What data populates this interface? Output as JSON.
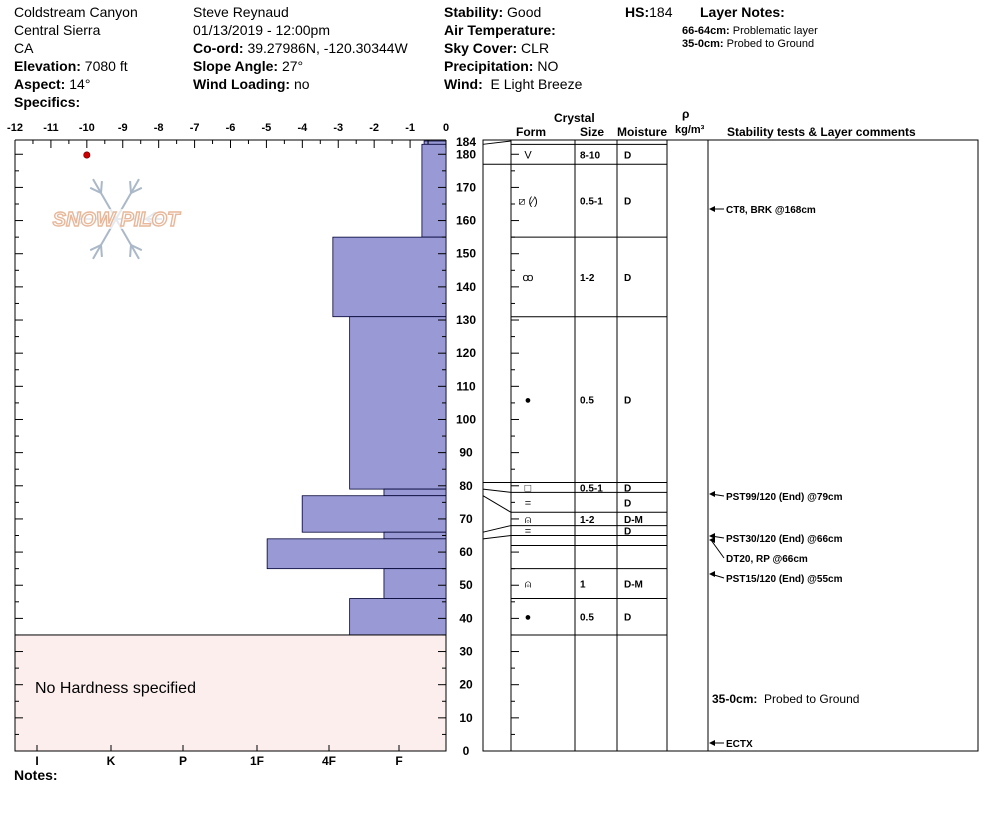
{
  "header": {
    "location": "Coldstream Canyon",
    "range": "Central Sierra",
    "state": "CA",
    "elevation_label": "Elevation:",
    "elevation": "7080 ft",
    "aspect_label": "Aspect:",
    "aspect": "14°",
    "specifics_label": "Specifics:",
    "observer": "Steve Reynaud",
    "datetime": "01/13/2019 - 12:00pm",
    "coord_label": "Co-ord:",
    "coord": "39.27986N, -120.30344W",
    "slope_label": "Slope Angle:",
    "slope": "27°",
    "wind_loading_label": "Wind Loading:",
    "wind_loading": "no",
    "stability_label": "Stability:",
    "stability": "Good",
    "air_temp_label": "Air Temperature:",
    "sky_label": "Sky Cover:",
    "sky": "CLR",
    "precip_label": "Precipitation:",
    "precip": "NO",
    "wind_label": "Wind:",
    "wind": "E Light Breeze",
    "hs_label": "HS:",
    "hs": "184",
    "layer_notes_label": "Layer Notes:",
    "layer_notes": [
      {
        "range": "66-64cm:",
        "text": "Problematic layer"
      },
      {
        "range": "35-0cm:",
        "text": "Probed to Ground"
      }
    ]
  },
  "logo_text": "SNOW PILOT",
  "no_hardness_text": "No Hardness specified",
  "notes_label": "Notes:",
  "columns": {
    "crystal": "Crystal",
    "form": "Form",
    "size": "Size",
    "moisture": "Moisture",
    "rho": "ρ",
    "density_unit": "kg/m³",
    "tests": "Stability tests & Layer comments"
  },
  "layers": [
    {
      "form": "V",
      "icon": "depth-hoar-icon",
      "size": "8-10",
      "moisture": "D"
    },
    {
      "form": "⧄ (⁄)",
      "icon": "faceted-crystal-icon",
      "size": "0.5-1",
      "moisture": "D"
    },
    {
      "form": "ꝏ",
      "icon": "decomposing-particles-icon",
      "size": "1-2",
      "moisture": "D"
    },
    {
      "form": "●",
      "icon": "rounded-grain-icon",
      "size": "0.5",
      "moisture": "D"
    },
    {
      "form": "□",
      "icon": "facet-icon",
      "size": "0.5-1",
      "moisture": "D"
    },
    {
      "form": "=",
      "icon": "ice-layer-icon",
      "size": "",
      "moisture": "D"
    },
    {
      "form": "⍝",
      "icon": "surface-hoar-icon",
      "size": "1-2",
      "moisture": "D-M"
    },
    {
      "form": "=",
      "icon": "ice-layer-icon",
      "size": "",
      "moisture": "D"
    },
    {
      "form": "⍝",
      "icon": "surface-hoar-icon",
      "size": "1",
      "moisture": "D-M"
    },
    {
      "form": "●",
      "icon": "rounded-grain-icon",
      "size": "0.5",
      "moisture": "D"
    }
  ],
  "tests": [
    {
      "text": "CT8, BRK @168cm",
      "depth": 168
    },
    {
      "text": "PST99/120 (End) @79cm",
      "depth": 79
    },
    {
      "text": "PST30/120 (End) @66cm",
      "depth": 66
    },
    {
      "text": "DT20, RP @66cm",
      "depth": 66
    },
    {
      "text": "PST15/120 (End) @55cm",
      "depth": 55
    },
    {
      "text": "ECTX",
      "depth": 0
    }
  ],
  "bottom_comment": {
    "range": "35-0cm:",
    "text": "Probed to Ground"
  },
  "chart_data": {
    "type": "bar",
    "temperature_axis": {
      "ticks": [
        "-12",
        "-11",
        "-10",
        "-9",
        "-8",
        "-7",
        "-6",
        "-5",
        "-4",
        "-3",
        "-2",
        "-1",
        "0"
      ],
      "range": [
        -12,
        0
      ]
    },
    "temperature_points": [
      {
        "depth": 184,
        "temp": -10
      }
    ],
    "depth_axis": {
      "range": [
        0,
        184
      ],
      "ticks": [
        "0",
        "10",
        "20",
        "30",
        "40",
        "50",
        "60",
        "70",
        "80",
        "90",
        "100",
        "110",
        "120",
        "130",
        "140",
        "150",
        "160",
        "170",
        "180",
        "184"
      ]
    },
    "hardness_axis": {
      "ticks": [
        "I",
        "K",
        "P",
        "1F",
        "4F",
        "F"
      ]
    },
    "hardness_profile": [
      {
        "top": 184,
        "bottom": 183,
        "hardness": 0.3
      },
      {
        "top": 183,
        "bottom": 155,
        "hardness": 0.33
      },
      {
        "top": 155,
        "bottom": 131,
        "hardness": 1.55
      },
      {
        "top": 131,
        "bottom": 79,
        "hardness": 1.32
      },
      {
        "top": 79,
        "bottom": 77,
        "hardness": 0.85
      },
      {
        "top": 77,
        "bottom": 66,
        "hardness": 1.97
      },
      {
        "top": 66,
        "bottom": 64,
        "hardness": 0.85
      },
      {
        "top": 64,
        "bottom": 55,
        "hardness": 2.45
      },
      {
        "top": 55,
        "bottom": 46,
        "hardness": 0.85
      },
      {
        "top": 46,
        "bottom": 35,
        "hardness": 1.32
      }
    ],
    "layer_boundaries": [
      184,
      183,
      177,
      155,
      131,
      81,
      78,
      72,
      68,
      65,
      62,
      55,
      46,
      35,
      0
    ],
    "layer_rows": [
      {
        "top": 183,
        "bottom": 177
      },
      {
        "top": 177,
        "bottom": 155
      },
      {
        "top": 155,
        "bottom": 131
      },
      {
        "top": 131,
        "bottom": 81
      },
      {
        "top": 81,
        "bottom": 78
      },
      {
        "top": 78,
        "bottom": 72
      },
      {
        "top": 72,
        "bottom": 68
      },
      {
        "top": 68,
        "bottom": 65
      },
      {
        "top": 65,
        "bottom": 62
      },
      {
        "top": 62,
        "bottom": 55
      },
      {
        "top": 55,
        "bottom": 46
      },
      {
        "top": 46,
        "bottom": 35
      }
    ],
    "layer_row_map": [
      0,
      1,
      2,
      3,
      4,
      5,
      6,
      7,
      10,
      11
    ]
  },
  "colors": {
    "bar_fill": "#9999d6",
    "bar_stroke": "#000033",
    "no_hardness_fill": "#fdeeee",
    "temp_point": "#cc0000",
    "logo": "#e8b79a",
    "logo_snowflake": "#aab8c8"
  }
}
